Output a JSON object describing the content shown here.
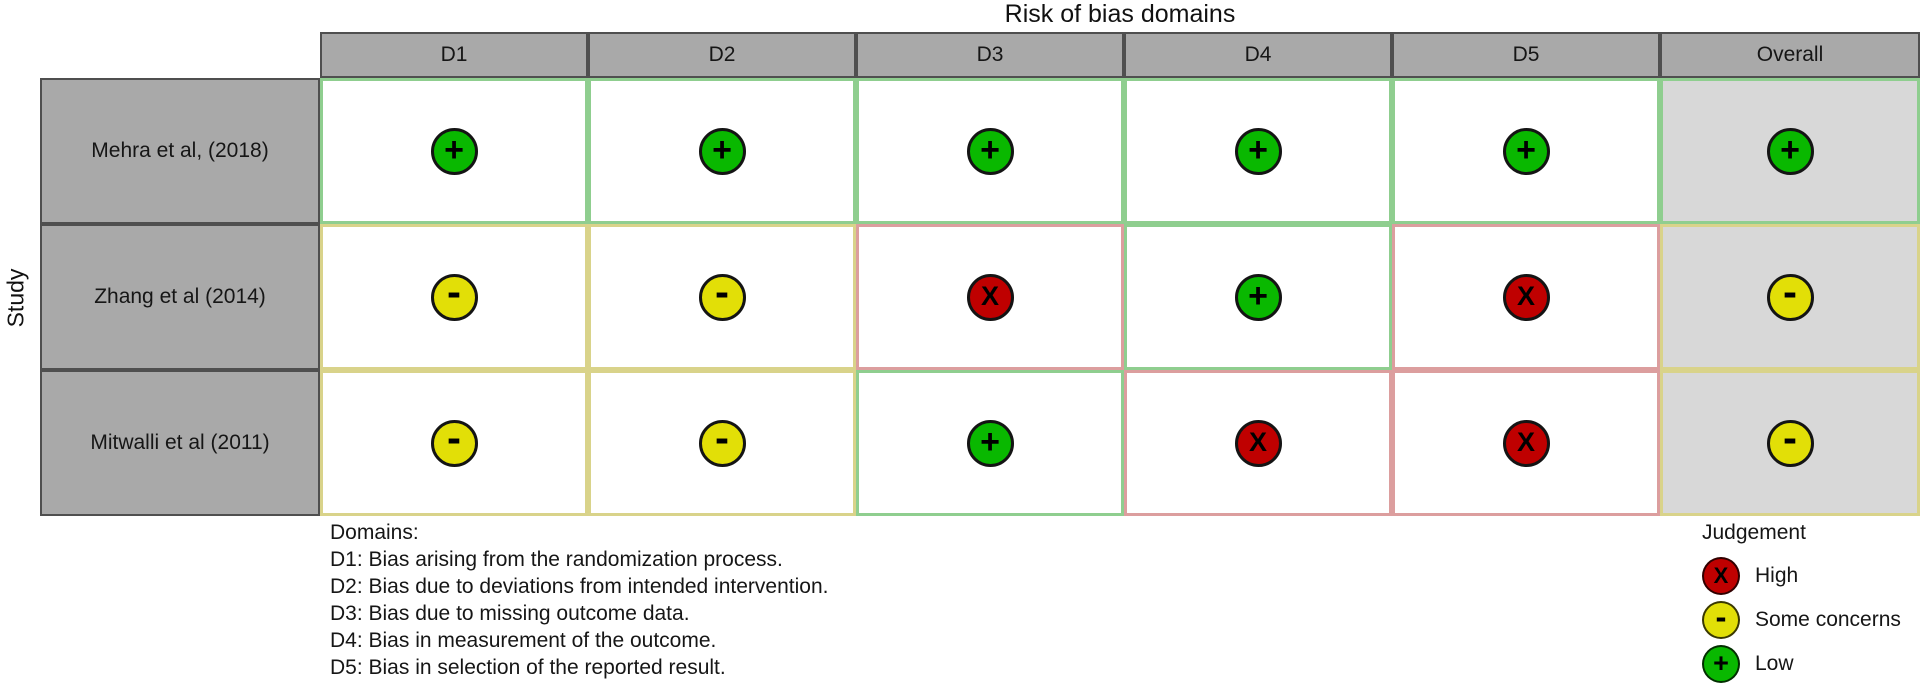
{
  "title": "Risk of bias domains",
  "y_axis_label": "Study",
  "table": {
    "columns": [
      "D1",
      "D2",
      "D3",
      "D4",
      "D5",
      "Overall"
    ],
    "rows": [
      {
        "study": "Mehra et al, (2018)",
        "judgements": [
          "low",
          "low",
          "low",
          "low",
          "low",
          "low"
        ]
      },
      {
        "study": "Zhang et al (2014)",
        "judgements": [
          "some",
          "some",
          "high",
          "low",
          "high",
          "some"
        ]
      },
      {
        "study": "Mitwalli et al (2011)",
        "judgements": [
          "some",
          "some",
          "low",
          "high",
          "high",
          "some"
        ]
      }
    ]
  },
  "judgement_styles": {
    "low": {
      "label": "Low",
      "symbol": "+",
      "fill": "#09b800",
      "tint": "#8fce8f",
      "icon": "low-risk-plus-icon"
    },
    "some": {
      "label": "Some concerns",
      "symbol": "-",
      "fill": "#e2df07",
      "tint": "#d9d38a",
      "icon": "some-concerns-minus-icon"
    },
    "high": {
      "label": "High",
      "symbol": "X",
      "fill": "#bf0000",
      "tint": "#dc9e9e",
      "icon": "high-risk-x-icon"
    }
  },
  "footnote": {
    "heading": "Domains:",
    "items": [
      "D1: Bias arising from the randomization process.",
      "D2: Bias due to deviations from intended intervention.",
      "D3: Bias due to missing outcome data.",
      "D4: Bias in measurement of the outcome.",
      "D5: Bias in selection of the reported result."
    ]
  },
  "legend": {
    "title": "Judgement",
    "items": [
      {
        "key": "high",
        "label": "High"
      },
      {
        "key": "some",
        "label": "Some concerns"
      },
      {
        "key": "low",
        "label": "Low"
      }
    ]
  },
  "colors": {
    "header_bg": "#a9a9a9",
    "overall_column_bg": "#d8d8d8",
    "grid_border_dark": "#4f4f4f",
    "low_fill": "#09b800",
    "some_concerns_fill": "#e2df07",
    "high_fill": "#bf0000"
  },
  "chart_data": {
    "type": "heatmap",
    "title": "Risk of bias domains",
    "xlabel": "Risk of bias domains",
    "ylabel": "Study",
    "x_categories": [
      "D1",
      "D2",
      "D3",
      "D4",
      "D5",
      "Overall"
    ],
    "y_categories": [
      "Mehra et al, (2018)",
      "Zhang et al (2014)",
      "Mitwalli et al (2011)"
    ],
    "values": [
      [
        "Low",
        "Low",
        "Low",
        "Low",
        "Low",
        "Low"
      ],
      [
        "Some concerns",
        "Some concerns",
        "High",
        "Low",
        "High",
        "Some concerns"
      ],
      [
        "Some concerns",
        "Some concerns",
        "Low",
        "High",
        "High",
        "Some concerns"
      ]
    ],
    "legend_entries": [
      "High",
      "Some concerns",
      "Low"
    ],
    "legend_position": "bottom-right",
    "grid": false
  }
}
